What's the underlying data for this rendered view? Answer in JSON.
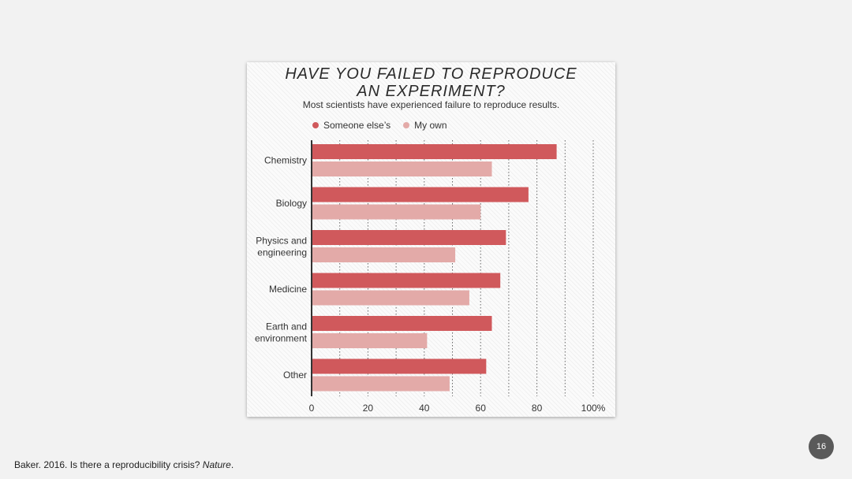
{
  "slide": {
    "citation_prefix": "Baker. 2016. Is there a reproducibility crisis? ",
    "citation_journal": "Nature",
    "citation_suffix": ".",
    "page_number": "16"
  },
  "colors": {
    "someone_else": "#d0595c",
    "my_own": "#e3aaa8",
    "axis": "#333333",
    "grid": "#666666"
  },
  "chart_data": {
    "type": "bar",
    "orientation": "horizontal",
    "title_line1": "HAVE YOU FAILED TO REPRODUCE",
    "title_line2": "AN EXPERIMENT?",
    "subtitle": "Most scientists have experienced failure to reproduce results.",
    "categories": [
      [
        "Chemistry"
      ],
      [
        "Biology"
      ],
      [
        "Physics and",
        "engineering"
      ],
      [
        "Medicine"
      ],
      [
        "Earth and",
        "environment"
      ],
      [
        "Other"
      ]
    ],
    "series": [
      {
        "name": "Someone else’s",
        "values": [
          87,
          77,
          69,
          67,
          64,
          62
        ]
      },
      {
        "name": "My own",
        "values": [
          64,
          60,
          51,
          56,
          41,
          49
        ]
      }
    ],
    "xlim": [
      0,
      100
    ],
    "ticks": [
      "0",
      "20",
      "40",
      "60",
      "80",
      "100%"
    ],
    "tick_values": [
      0,
      20,
      40,
      60,
      80,
      100
    ],
    "grid_values": [
      10,
      20,
      30,
      40,
      50,
      60,
      70,
      80,
      90,
      100
    ],
    "legend_position": "top-left"
  }
}
